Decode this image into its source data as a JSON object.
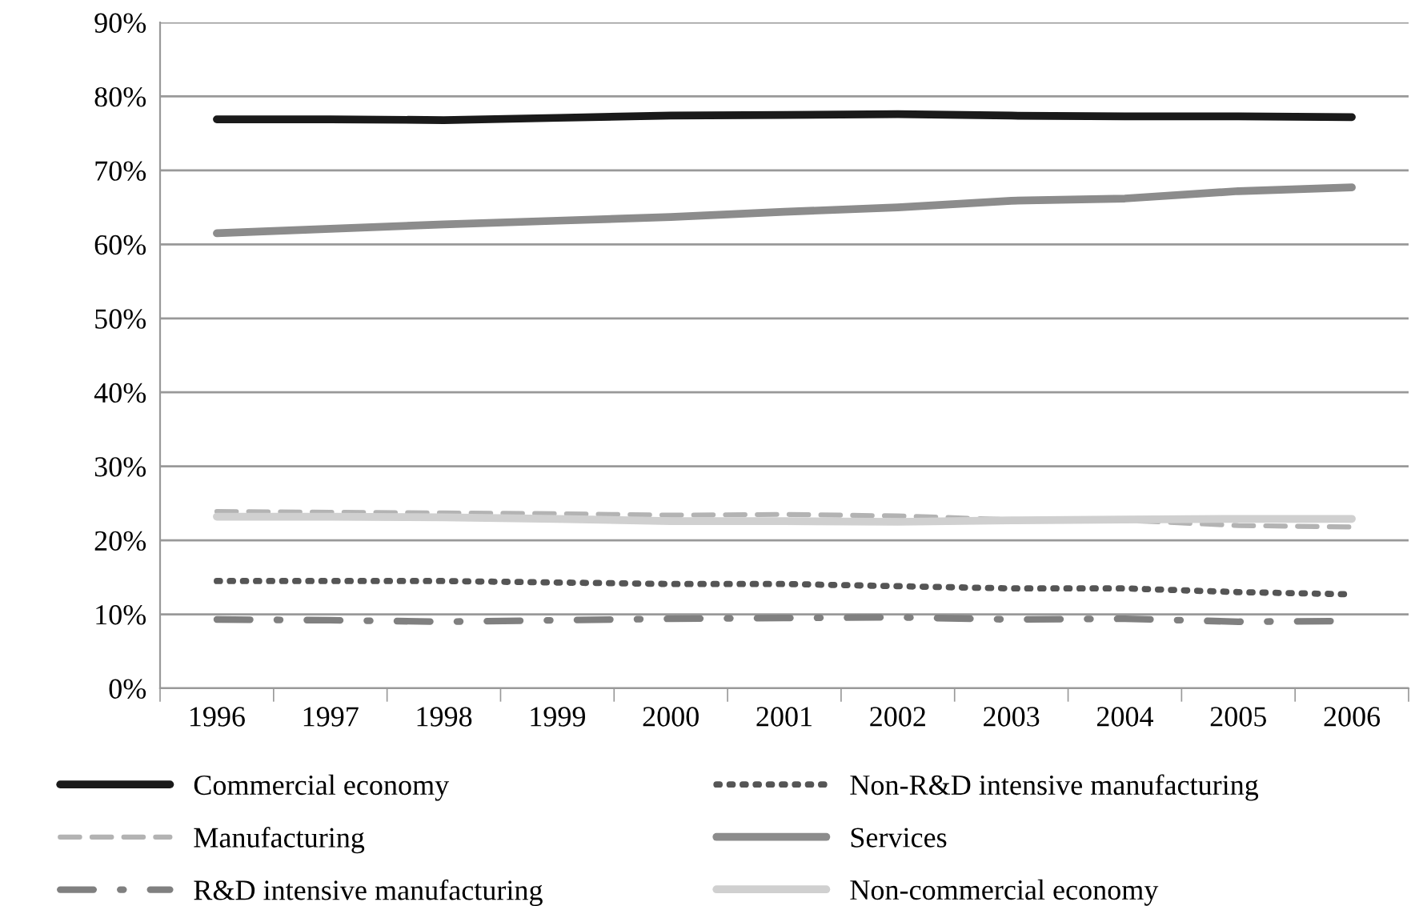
{
  "chart_data": {
    "type": "line",
    "categories": [
      "1996",
      "1997",
      "1998",
      "1999",
      "2000",
      "2001",
      "2002",
      "2003",
      "2004",
      "2005",
      "2006"
    ],
    "series": [
      {
        "name": "Commercial economy",
        "color": "#1a1a1a",
        "line_style": "solid",
        "values": [
          76.9,
          76.9,
          76.8,
          77.1,
          77.4,
          77.5,
          77.6,
          77.4,
          77.3,
          77.3,
          77.2
        ]
      },
      {
        "name": "Manufacturing",
        "color": "#b3b3b3",
        "line_style": "dashed",
        "values": [
          23.9,
          23.8,
          23.7,
          23.6,
          23.4,
          23.5,
          23.3,
          22.8,
          22.7,
          22.0,
          21.8
        ]
      },
      {
        "name": "R&D intensive manufacturing",
        "color": "#808080",
        "line_style": "dashdot",
        "values": [
          9.3,
          9.2,
          9.0,
          9.2,
          9.4,
          9.5,
          9.6,
          9.3,
          9.4,
          9.0,
          9.1
        ]
      },
      {
        "name": "Non-R&D intensive manufacturing",
        "color": "#555555",
        "line_style": "dotted",
        "values": [
          14.5,
          14.5,
          14.5,
          14.3,
          14.1,
          14.1,
          13.8,
          13.5,
          13.5,
          13.0,
          12.7
        ]
      },
      {
        "name": "Services",
        "color": "#8c8c8c",
        "line_style": "solid",
        "values": [
          61.5,
          62.1,
          62.7,
          63.2,
          63.7,
          64.4,
          65.0,
          65.9,
          66.2,
          67.2,
          67.7
        ]
      },
      {
        "name": "Non-commercial economy",
        "color": "#d0d0d0",
        "line_style": "solid",
        "values": [
          23.2,
          23.2,
          23.1,
          22.9,
          22.6,
          22.6,
          22.5,
          22.7,
          22.8,
          22.9,
          22.9
        ]
      }
    ],
    "ylim": [
      0,
      90
    ],
    "yticks": [
      {
        "value": 0,
        "label": "0%"
      },
      {
        "value": 10,
        "label": "10%"
      },
      {
        "value": 20,
        "label": "20%"
      },
      {
        "value": 30,
        "label": "30%"
      },
      {
        "value": 40,
        "label": "40%"
      },
      {
        "value": 50,
        "label": "50%"
      },
      {
        "value": 60,
        "label": "60%"
      },
      {
        "value": 70,
        "label": "70%"
      },
      {
        "value": 80,
        "label": "80%"
      },
      {
        "value": 90,
        "label": "90%"
      }
    ],
    "grid": "y",
    "legend": "bottom",
    "marker": "none"
  }
}
